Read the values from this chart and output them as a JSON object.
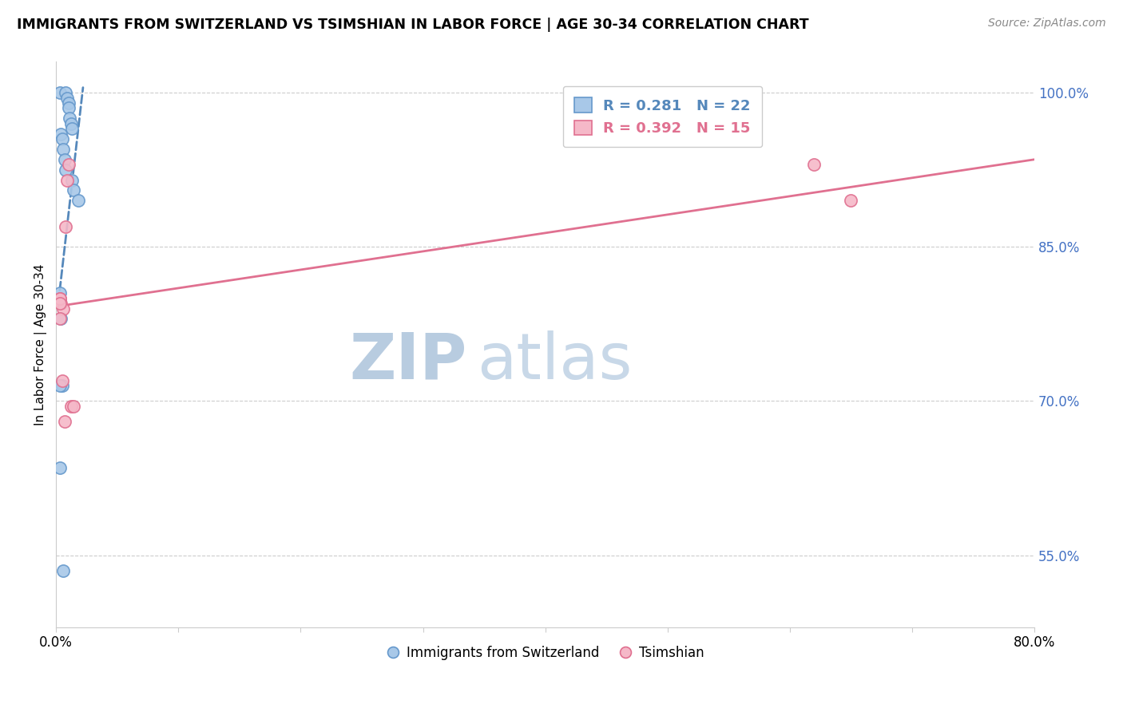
{
  "title": "IMMIGRANTS FROM SWITZERLAND VS TSIMSHIAN IN LABOR FORCE | AGE 30-34 CORRELATION CHART",
  "source_text": "Source: ZipAtlas.com",
  "ylabel": "In Labor Force | Age 30-34",
  "legend_label1": "Immigrants from Switzerland",
  "legend_label2": "Tsimshian",
  "R1": 0.281,
  "N1": 22,
  "R2": 0.392,
  "N2": 15,
  "xlim": [
    0.0,
    0.8
  ],
  "ylim": [
    0.48,
    1.03
  ],
  "yticks_right": [
    1.0,
    0.85,
    0.7,
    0.55
  ],
  "ytick_right_labels": [
    "100.0%",
    "85.0%",
    "70.0%",
    "55.0%"
  ],
  "color_blue_fill": "#A8C8E8",
  "color_blue_edge": "#6699CC",
  "color_pink_fill": "#F5B8C8",
  "color_pink_edge": "#E07090",
  "color_blue_line": "#5588BB",
  "color_pink_line": "#E07090",
  "color_right_axis": "#4472C4",
  "watermark_zip": "ZIP",
  "watermark_atlas": "atlas",
  "watermark_color": "#D0DFF0",
  "swiss_x": [
    0.003,
    0.008,
    0.009,
    0.01,
    0.01,
    0.011,
    0.012,
    0.013,
    0.004,
    0.005,
    0.006,
    0.007,
    0.008,
    0.013,
    0.014,
    0.018,
    0.003,
    0.004,
    0.005,
    0.003,
    0.003,
    0.006
  ],
  "swiss_y": [
    1.0,
    1.0,
    0.995,
    0.99,
    0.985,
    0.975,
    0.97,
    0.965,
    0.96,
    0.955,
    0.945,
    0.935,
    0.925,
    0.915,
    0.905,
    0.895,
    0.805,
    0.78,
    0.715,
    0.715,
    0.635,
    0.535
  ],
  "tsim_x": [
    0.003,
    0.004,
    0.006,
    0.01,
    0.008,
    0.003,
    0.005,
    0.012,
    0.014,
    0.003,
    0.003,
    0.007,
    0.62,
    0.65,
    0.009
  ],
  "tsim_y": [
    0.8,
    0.795,
    0.79,
    0.93,
    0.87,
    0.78,
    0.72,
    0.695,
    0.695,
    0.8,
    0.795,
    0.68,
    0.93,
    0.895,
    0.915
  ],
  "blue_trendline_x": [
    0.003,
    0.022
  ],
  "blue_trendline_y": [
    0.808,
    1.005
  ],
  "pink_trendline_x": [
    0.0,
    0.8
  ],
  "pink_trendline_y": [
    0.792,
    0.935
  ]
}
